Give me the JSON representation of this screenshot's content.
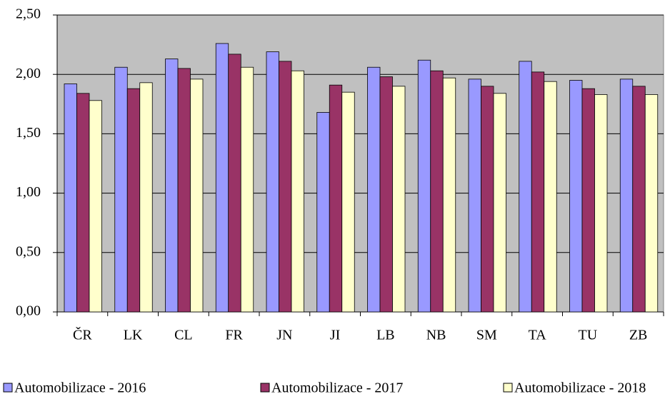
{
  "chart_data": {
    "type": "bar",
    "categories": [
      "ČR",
      "LK",
      "CL",
      "FR",
      "JN",
      "JI",
      "LB",
      "NB",
      "SM",
      "TA",
      "TU",
      "ZB"
    ],
    "series": [
      {
        "name": "Automobilizace - 2016",
        "color": "#9999ff",
        "values": [
          1.92,
          2.06,
          2.13,
          2.26,
          2.19,
          1.68,
          2.06,
          2.12,
          1.96,
          2.11,
          1.95,
          1.96
        ]
      },
      {
        "name": "Automobilizace - 2017",
        "color": "#993366",
        "values": [
          1.84,
          1.88,
          2.05,
          2.17,
          2.11,
          1.91,
          1.98,
          2.03,
          1.9,
          2.02,
          1.88,
          1.9
        ]
      },
      {
        "name": "Automobilizace - 2018",
        "color": "#ffffcc",
        "values": [
          1.78,
          1.93,
          1.96,
          2.06,
          2.03,
          1.85,
          1.9,
          1.97,
          1.84,
          1.94,
          1.83,
          1.83
        ]
      }
    ],
    "ylim": [
      0,
      2.5
    ],
    "yticks": [
      {
        "value": 0,
        "label": "0,00"
      },
      {
        "value": 0.5,
        "label": "0,50"
      },
      {
        "value": 1,
        "label": "1,00"
      },
      {
        "value": 1.5,
        "label": "1,50"
      },
      {
        "value": 2,
        "label": "2,00"
      },
      {
        "value": 2.5,
        "label": "2,50"
      }
    ],
    "grid": true,
    "legend": "bottom"
  }
}
